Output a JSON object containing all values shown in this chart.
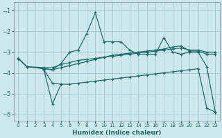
{
  "background_color": "#cce8ec",
  "grid_color": "#aacdd4",
  "line_color": "#1f6b6b",
  "xlabel": "Humidex (Indice chaleur)",
  "xlim": [
    -0.5,
    23.5
  ],
  "ylim": [
    -6.3,
    -0.6
  ],
  "yticks": [
    -6,
    -5,
    -4,
    -3,
    -2,
    -1
  ],
  "xticks": [
    0,
    1,
    2,
    3,
    4,
    5,
    6,
    7,
    8,
    9,
    10,
    11,
    12,
    13,
    14,
    15,
    16,
    17,
    18,
    19,
    20,
    21,
    22,
    23
  ],
  "series": [
    {
      "x": [
        0,
        1,
        3,
        4,
        5,
        6,
        7,
        8,
        9,
        10,
        11,
        12,
        13,
        14,
        15,
        16,
        17,
        18,
        19,
        20,
        21,
        22,
        23
      ],
      "y": [
        -3.3,
        -3.7,
        -3.8,
        -3.85,
        -3.55,
        -3.0,
        -2.9,
        -2.1,
        -1.1,
        -2.5,
        -2.5,
        -2.5,
        -2.9,
        -3.1,
        -3.1,
        -3.1,
        -2.3,
        -3.0,
        -3.1,
        -3.0,
        -3.0,
        -3.7,
        -5.9
      ]
    },
    {
      "x": [
        0,
        1,
        3,
        4,
        5,
        6,
        7,
        8,
        9,
        10,
        11,
        12,
        13,
        14,
        15,
        16,
        17,
        18,
        19,
        20,
        21,
        22,
        23
      ],
      "y": [
        -3.3,
        -3.7,
        -3.75,
        -3.75,
        -3.6,
        -3.5,
        -3.4,
        -3.35,
        -3.3,
        -3.25,
        -3.2,
        -3.15,
        -3.1,
        -3.05,
        -3.0,
        -2.95,
        -2.9,
        -2.85,
        -2.8,
        -2.9,
        -2.9,
        -3.0,
        -3.0
      ]
    },
    {
      "x": [
        0,
        1,
        3,
        4,
        5,
        6,
        7,
        8,
        9,
        10,
        11,
        12,
        13,
        14,
        15,
        16,
        17,
        18,
        19,
        20,
        21,
        22,
        23
      ],
      "y": [
        -3.3,
        -3.7,
        -3.8,
        -3.85,
        -3.75,
        -3.65,
        -3.55,
        -3.45,
        -3.35,
        -3.25,
        -3.15,
        -3.1,
        -3.05,
        -3.0,
        -2.95,
        -2.9,
        -2.85,
        -2.75,
        -2.7,
        -2.95,
        -2.95,
        -3.1,
        -3.1
      ]
    },
    {
      "x": [
        3,
        4,
        5,
        6,
        7,
        8,
        9,
        10,
        11,
        12,
        13,
        14,
        15,
        16,
        17,
        18,
        19,
        20,
        21,
        22,
        23
      ],
      "y": [
        -3.85,
        -4.5,
        -4.55,
        -4.55,
        -4.5,
        -4.45,
        -4.4,
        -4.35,
        -4.3,
        -4.25,
        -4.2,
        -4.15,
        -4.1,
        -4.05,
        -4.0,
        -3.95,
        -3.9,
        -3.85,
        -3.8,
        -5.7,
        -5.9
      ]
    },
    {
      "x": [
        3,
        4,
        5
      ],
      "y": [
        -3.85,
        -5.5,
        -4.55
      ]
    }
  ]
}
